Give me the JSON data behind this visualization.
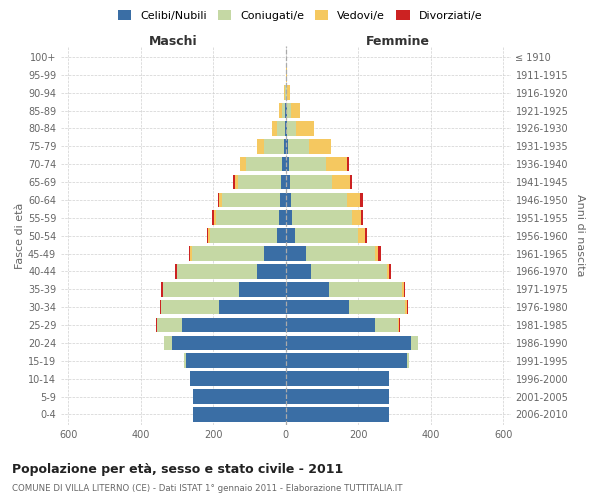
{
  "age_groups": [
    "0-4",
    "5-9",
    "10-14",
    "15-19",
    "20-24",
    "25-29",
    "30-34",
    "35-39",
    "40-44",
    "45-49",
    "50-54",
    "55-59",
    "60-64",
    "65-69",
    "70-74",
    "75-79",
    "80-84",
    "85-89",
    "90-94",
    "95-99",
    "100+"
  ],
  "birth_years": [
    "2006-2010",
    "2001-2005",
    "1996-2000",
    "1991-1995",
    "1986-1990",
    "1981-1985",
    "1976-1980",
    "1971-1975",
    "1966-1970",
    "1961-1965",
    "1956-1960",
    "1951-1955",
    "1946-1950",
    "1941-1945",
    "1936-1940",
    "1931-1935",
    "1926-1930",
    "1921-1925",
    "1916-1920",
    "1911-1915",
    "≤ 1910"
  ],
  "maschi": {
    "celibi": [
      255,
      255,
      265,
      275,
      315,
      285,
      185,
      130,
      80,
      60,
      25,
      18,
      15,
      12,
      10,
      5,
      3,
      2,
      0,
      0,
      0
    ],
    "coniugati": [
      0,
      0,
      0,
      5,
      20,
      70,
      160,
      210,
      220,
      200,
      185,
      175,
      160,
      120,
      100,
      55,
      20,
      8,
      2,
      0,
      0
    ],
    "vedovi": [
      0,
      0,
      0,
      0,
      0,
      0,
      0,
      0,
      0,
      5,
      5,
      5,
      8,
      8,
      15,
      20,
      15,
      8,
      2,
      0,
      0
    ],
    "divorziati": [
      0,
      0,
      0,
      0,
      0,
      2,
      3,
      5,
      5,
      3,
      3,
      5,
      5,
      5,
      2,
      0,
      0,
      0,
      0,
      0,
      0
    ]
  },
  "femmine": {
    "nubili": [
      285,
      285,
      285,
      335,
      345,
      245,
      175,
      120,
      70,
      55,
      25,
      18,
      15,
      12,
      10,
      5,
      3,
      2,
      0,
      0,
      0
    ],
    "coniugate": [
      0,
      0,
      0,
      5,
      20,
      65,
      155,
      200,
      210,
      190,
      175,
      165,
      155,
      115,
      100,
      60,
      25,
      12,
      3,
      0,
      0
    ],
    "vedove": [
      0,
      0,
      0,
      0,
      0,
      2,
      3,
      5,
      5,
      10,
      18,
      25,
      35,
      50,
      60,
      60,
      50,
      25,
      8,
      2,
      0
    ],
    "divorziate": [
      0,
      0,
      0,
      0,
      0,
      2,
      5,
      5,
      5,
      8,
      5,
      5,
      8,
      5,
      3,
      0,
      0,
      0,
      0,
      0,
      0
    ]
  },
  "colors": {
    "celibi": "#3A6EA5",
    "coniugati": "#C5D8A4",
    "vedovi": "#F5C860",
    "divorziati": "#CC2222"
  },
  "xlim": 620,
  "title": "Popolazione per età, sesso e stato civile - 2011",
  "subtitle": "COMUNE DI VILLA LITERNO (CE) - Dati ISTAT 1° gennaio 2011 - Elaborazione TUTTITALIA.IT",
  "ylabel_left": "Fasce di età",
  "ylabel_right": "Anni di nascita",
  "xlabel_maschi": "Maschi",
  "xlabel_femmine": "Femmine",
  "legend_labels": [
    "Celibi/Nubili",
    "Coniugati/e",
    "Vedovi/e",
    "Divorziati/e"
  ],
  "background_color": "#FFFFFF",
  "grid_color": "#CCCCCC",
  "figsize": [
    6.0,
    5.0
  ],
  "dpi": 100
}
